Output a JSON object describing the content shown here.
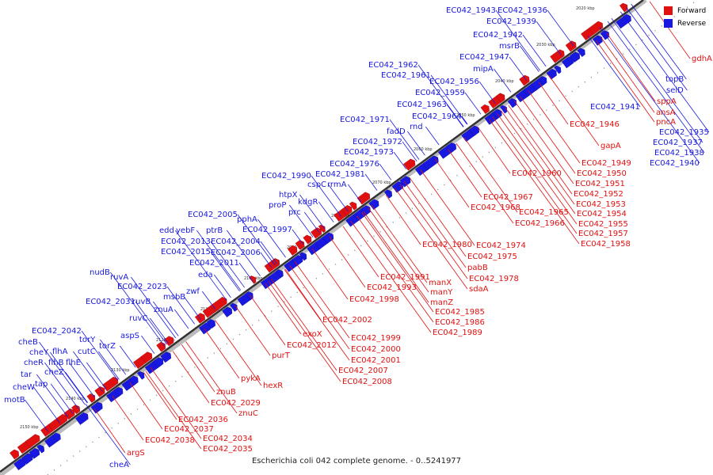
{
  "caption": "Escherichia coli 042 complete genome. - 0..5241977",
  "legend": [
    {
      "label": "Forward",
      "color": "#e01010"
    },
    {
      "label": "Reverse",
      "color": "#1818e0"
    }
  ],
  "strand_colors": {
    "forward": "#e01010",
    "reverse": "#1818e0"
  },
  "ticks": [
    "2020 kbp",
    "2030 kbp",
    "2040 kbp",
    "2050 kbp",
    "2060 kbp",
    "2070 kbp",
    "2080 kbp",
    "2090 kbp",
    "2100 kbp",
    "2110 kbp",
    "2120 kbp",
    "2130 kbp",
    "2140 kbp",
    "2150 kbp"
  ],
  "reverse_labels": [
    "EC042_1943",
    "EC042_1936",
    "EC042_1939",
    "EC042_1942",
    "msrB",
    "EC042_1947",
    "mipA",
    "EC042_1962",
    "EC042_1961",
    "EC042_1956",
    "EC042_1959",
    "EC042_1963",
    "EC042_1964",
    "EC042_1971",
    "rnd",
    "fadD",
    "EC042_1972",
    "EC042_1973",
    "EC042_1976",
    "EC042_1990",
    "EC042_1981",
    "cspC",
    "rrmA",
    "htpX",
    "proP",
    "kdgR",
    "prc",
    "EC042_2005",
    "pphA",
    "edd",
    "yebF",
    "ptrB",
    "EC042_1997",
    "EC042_2013",
    "EC042_2004",
    "EC042_2015",
    "EC042_2006",
    "EC042_2011",
    "eda",
    "nudB",
    "ruvA",
    "EC042_2023",
    "zwf",
    "msbB",
    "EC042_2031",
    "ruvB",
    "znuA",
    "ruvC",
    "aspS",
    "EC042_2042",
    "torY",
    "cheB",
    "torZ",
    "cutC",
    "cheY",
    "flhA",
    "cheR",
    "flhB",
    "flhE",
    "cheZ",
    "tar",
    "tap",
    "cheW",
    "motB",
    "cheA",
    "topB",
    "selD",
    "EC042_1941",
    "EC042_1935",
    "EC042_1937",
    "EC042_1938",
    "EC042_1940"
  ],
  "forward_labels": [
    "gdhA",
    "sppA",
    "ansA",
    "pncA",
    "EC042_1946",
    "gapA",
    "EC042_1949",
    "EC042_1950",
    "EC042_1960",
    "EC042_1951",
    "EC042_1952",
    "EC042_1953",
    "EC042_1954",
    "EC042_1955",
    "EC042_1957",
    "EC042_1958",
    "EC042_1967",
    "EC042_1968",
    "EC042_1965",
    "EC042_1966",
    "EC042_1980",
    "EC042_1974",
    "EC042_1975",
    "pabB",
    "EC042_1978",
    "sdaA",
    "EC042_1991",
    "manX",
    "EC042_1993",
    "manY",
    "manZ",
    "EC042_1998",
    "EC042_1985",
    "EC042_1986",
    "EC042_1989",
    "EC042_2002",
    "EC042_1999",
    "exoX",
    "EC042_2000",
    "EC042_2012",
    "EC042_2001",
    "purT",
    "EC042_2007",
    "EC042_2008",
    "pykA",
    "hexR",
    "znuB",
    "EC042_2029",
    "znuC",
    "EC042_2036",
    "EC042_2037",
    "EC042_2038",
    "EC042_2034",
    "EC042_2035",
    "argS"
  ]
}
